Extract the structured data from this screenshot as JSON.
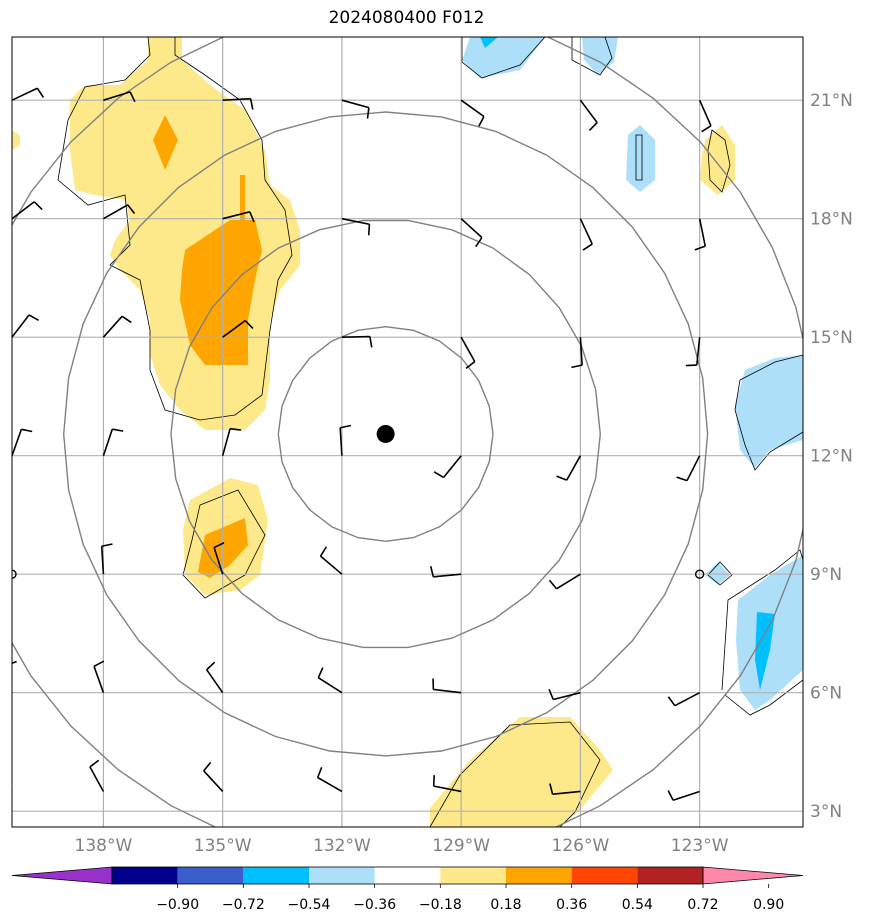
{
  "title": "2024080400 F012",
  "map": {
    "lon_range": [
      -140.3,
      -120.4
    ],
    "lat_range": [
      2.6,
      22.6
    ],
    "storm_center": {
      "lon": -130.9,
      "lat": 12.55
    },
    "range_rings_deg": [
      2.7,
      5.4,
      8.1,
      10.8
    ],
    "lat_ticks": [
      {
        "value": 3,
        "label": "3°N"
      },
      {
        "value": 6,
        "label": "6°N"
      },
      {
        "value": 9,
        "label": "9°N"
      },
      {
        "value": 12,
        "label": "12°N"
      },
      {
        "value": 15,
        "label": "15°N"
      },
      {
        "value": 18,
        "label": "18°N"
      },
      {
        "value": 21,
        "label": "21°N"
      }
    ],
    "lon_ticks": [
      {
        "value": -138,
        "label": "138°W"
      },
      {
        "value": -135,
        "label": "135°W"
      },
      {
        "value": -132,
        "label": "132°W"
      },
      {
        "value": -129,
        "label": "129°W"
      },
      {
        "value": -126,
        "label": "126°W"
      },
      {
        "value": -123,
        "label": "123°W"
      }
    ],
    "barb_lons": [
      -140.3,
      -138,
      -135,
      -132,
      -129,
      -126,
      -123
    ],
    "barb_lats": [
      21,
      18,
      15,
      12,
      9,
      6,
      3.5
    ],
    "colors": {
      "grid": "#b0b0b0",
      "ring": "#808080",
      "pos_1": "#fde98a",
      "pos_2": "#ffa500",
      "neg_1": "#aedff8",
      "neg_2": "#00bfff"
    }
  },
  "colorbar": {
    "ticks": [
      "−0.90",
      "−0.72",
      "−0.54",
      "−0.36",
      "−0.18",
      "0.18",
      "0.36",
      "0.54",
      "0.72",
      "0.90"
    ],
    "colors": [
      "#9932cc",
      "#00008b",
      "#3a5fcd",
      "#00bfff",
      "#aedff8",
      "#ffffff",
      "#fde98a",
      "#ffa500",
      "#ff4500",
      "#b22222",
      "#ff88aa"
    ]
  }
}
